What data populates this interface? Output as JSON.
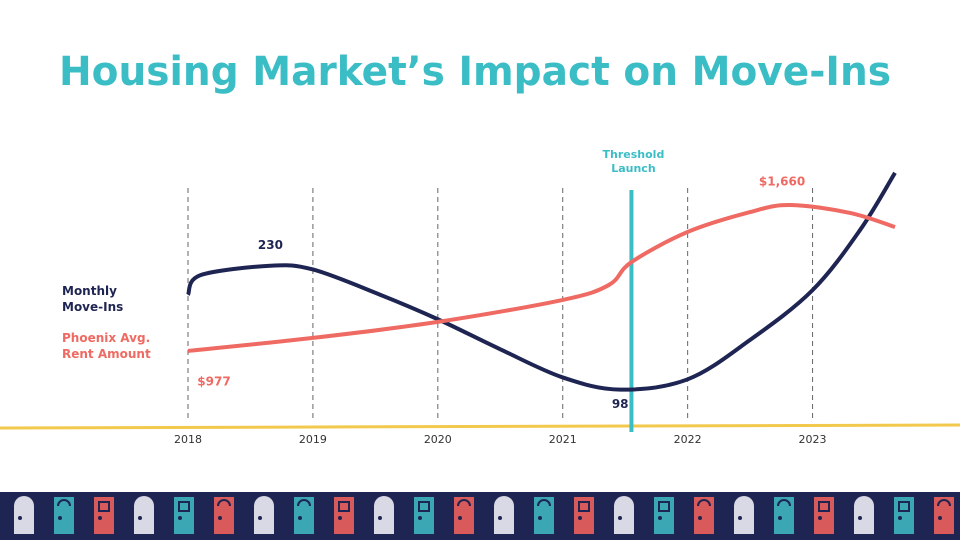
{
  "chart_data": {
    "type": "line",
    "title": "Housing Market’s Impact on Move-Ins",
    "xlim": [
      2018,
      2023.66
    ],
    "xticks": [
      2018,
      2019,
      2020,
      2021,
      2022,
      2023
    ],
    "ylim": [
      55,
      332
    ],
    "y2lim": [
      607,
      1824
    ],
    "grid": true,
    "series": [
      {
        "name": "Monthly Move-Ins",
        "color": "#1f2552",
        "x": [
          2018,
          2018.1,
          2018.66,
          2019,
          2019.54,
          2020,
          2020.5,
          2021,
          2021.46,
          2022,
          2022.5,
          2023,
          2023.38,
          2023.66
        ],
        "values": [
          199,
          220,
          230,
          226,
          199,
          173,
          141,
          111,
          98,
          109,
          151,
          204,
          268,
          329
        ]
      },
      {
        "name": "Phoenix Avg. Rent Amount",
        "color": "#ee6a62",
        "axis": "y2",
        "x": [
          2018,
          2019,
          2020,
          2021,
          2021.37,
          2021.55,
          2022,
          2022.5,
          2022.82,
          2023.3,
          2023.66
        ],
        "values": [
          977,
          1038,
          1113,
          1216,
          1286,
          1393,
          1534,
          1627,
          1660,
          1623,
          1557
        ],
        "value_labels": [
          "$977",
          null,
          null,
          null,
          null,
          null,
          null,
          null,
          "$1,660",
          null,
          null
        ]
      }
    ],
    "annotations": [
      {
        "lines": [
          "Threshold",
          "Launch"
        ],
        "x": 2021.55,
        "color": "#3bbdc6"
      }
    ]
  }
}
